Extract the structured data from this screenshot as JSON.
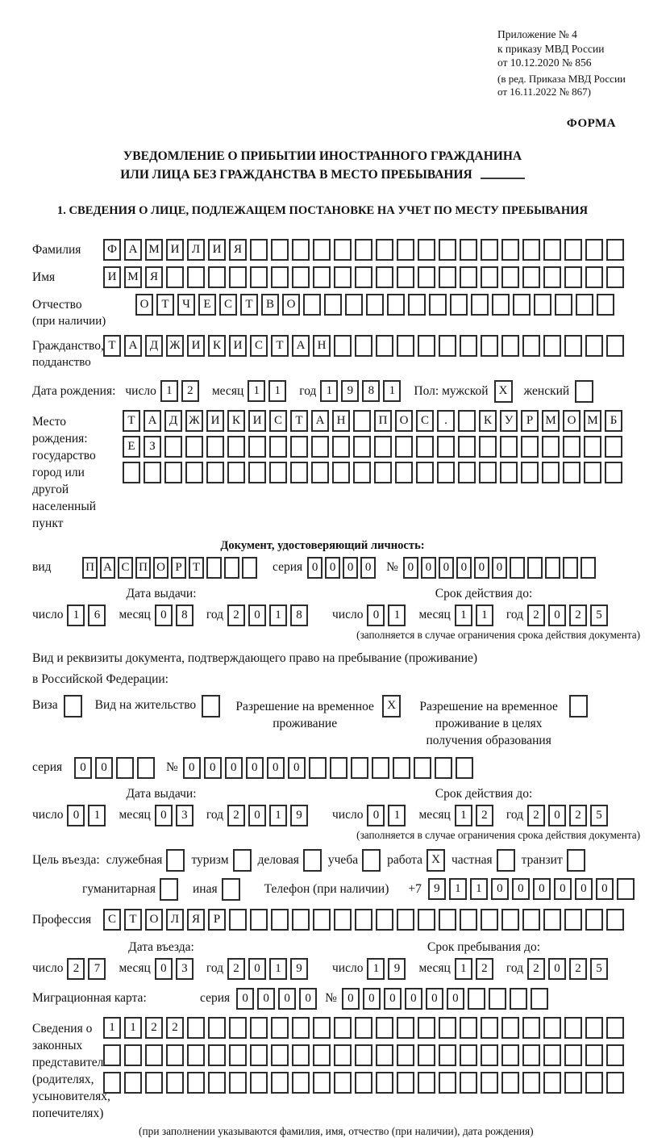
{
  "page": {
    "ref": [
      "Приложение № 4",
      "к приказу МВД России",
      "от 10.12.2020 № 856"
    ],
    "ref_note": [
      "(в ред. Приказа МВД России",
      "от 16.11.2022 № 867)"
    ],
    "form_label": "ФОРМА",
    "title1": "УВЕДОМЛЕНИЕ О ПРИБЫТИИ ИНОСТРАННОГО ГРАЖДАНИНА",
    "title2": "ИЛИ ЛИЦА БЕЗ ГРАЖДАНСТВА В МЕСТО ПРЕБЫВАНИЯ",
    "section1_heading": "1. СВЕДЕНИЯ О ЛИЦЕ, ПОДЛЕЖАЩЕМ ПОСТАНОВКЕ НА УЧЕТ ПО МЕСТУ ПРЕБЫВАНИЯ"
  },
  "labels": {
    "day": "число",
    "month": "месяц",
    "year": "год",
    "series": "серия",
    "number": "№",
    "issue_date": "Дата выдачи:",
    "valid_until": "Срок действия до:",
    "validity_note": "(заполняется в случае ограничения срока действия документа)"
  },
  "surname": {
    "label": "Фамилия",
    "boxes": {
      "cells": "ФАМИЛИЯ",
      "len": 25
    }
  },
  "firstname": {
    "label": "Имя",
    "boxes": {
      "cells": "ИМЯ",
      "len": 25
    }
  },
  "patronymic": {
    "label": "Отчество",
    "label2": "(при наличии)",
    "boxes": {
      "cells": "ОТЧЕСТВО",
      "len": 23
    }
  },
  "citizenship": {
    "label": "Гражданство,",
    "label2": "подданство",
    "boxes": {
      "cells": "ТАДЖИКИСТАН",
      "len": 25
    }
  },
  "birth": {
    "label": "Дата рождения:",
    "day": "12",
    "month": "11",
    "year": "1981",
    "sex_label": "Пол: мужской",
    "male_mark": "X",
    "female_label": "женский",
    "female_mark": ""
  },
  "birthplace": {
    "label1": "Место рождения:",
    "label2": "государство",
    "label3": "город или другой",
    "label4": "населенный пункт",
    "row1": {
      "cells": "ТАДЖИКИСТАН ПОС. КУРМОМБ",
      "len": 24
    },
    "row2": {
      "cells": "ЕЗ",
      "len": 24
    },
    "row3": {
      "cells": "",
      "len": 24
    }
  },
  "iddoc": {
    "heading": "Документ, удостоверяющий личность:",
    "kind_label": "вид",
    "kind": {
      "cells": "ПАСПОРТ",
      "len": 10
    },
    "series": {
      "cells": "0000",
      "len": 4
    },
    "number": {
      "cells": "000000",
      "len": 11
    },
    "issue_day": "16",
    "issue_month": "08",
    "issue_year": "2018",
    "valid_day": "01",
    "valid_month": "11",
    "valid_year": "2025"
  },
  "resdoc": {
    "intro1": "Вид и реквизиты документа, подтверждающего право на пребывание (проживание)",
    "intro2": "в Российской Федерации:",
    "opt_visa": "Виза",
    "opt_visa_mark": "",
    "opt_residence": "Вид на жительство",
    "opt_residence_mark": "",
    "opt_rvp": "Разрешение на временное проживание",
    "opt_rvp_mark": "X",
    "opt_rvp_edu": "Разрешение на временное проживание в целях получения образования",
    "opt_rvp_edu_mark": "",
    "series": {
      "cells": "00",
      "len": 4
    },
    "number": {
      "cells": "000000",
      "len": 14
    },
    "issue_day": "01",
    "issue_month": "03",
    "issue_year": "2019",
    "valid_day": "01",
    "valid_month": "12",
    "valid_year": "2025"
  },
  "purpose": {
    "label": "Цель въезда:",
    "opts": [
      {
        "label": "служебная",
        "mark": ""
      },
      {
        "label": "туризм",
        "mark": ""
      },
      {
        "label": "деловая",
        "mark": ""
      },
      {
        "label": "учеба",
        "mark": ""
      },
      {
        "label": "работа",
        "mark": "X"
      },
      {
        "label": "частная",
        "mark": ""
      },
      {
        "label": "транзит",
        "mark": ""
      },
      {
        "label": "гуманитарная",
        "mark": ""
      },
      {
        "label": "иная",
        "mark": ""
      }
    ],
    "phone_label": "Телефон (при наличии)",
    "phone_prefix": "+7",
    "phone": {
      "cells": "911000000",
      "len": 10
    }
  },
  "profession": {
    "label": "Профессия",
    "boxes": {
      "cells": "СТОЛЯР",
      "len": 25
    }
  },
  "entry": {
    "heading_left": "Дата въезда:",
    "heading_right": "Срок пребывания до:",
    "entry_day": "27",
    "entry_month": "03",
    "entry_year": "2019",
    "stay_day": "19",
    "stay_month": "12",
    "stay_year": "2025"
  },
  "migcard": {
    "label": "Миграционная карта:",
    "series": {
      "cells": "0000",
      "len": 4
    },
    "number": {
      "cells": "000000",
      "len": 10
    }
  },
  "reps": {
    "label_lines": [
      "Сведения о",
      "законных",
      "представителях",
      "(родителях,",
      "усыновителях,",
      "попечителях)"
    ],
    "row1": {
      "cells": "1122",
      "len": 25
    },
    "row2": {
      "cells": "",
      "len": 25
    },
    "row3": {
      "cells": "",
      "len": 25
    },
    "note": "(при заполнении указываются фамилия, имя, отчество (при наличии), дата рождения)"
  }
}
